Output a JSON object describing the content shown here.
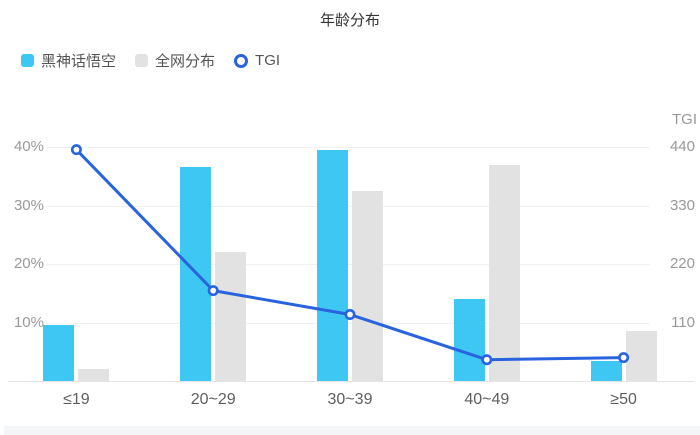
{
  "title": "年龄分布",
  "legend": {
    "items": [
      {
        "label": "黑神话悟空",
        "swatch": "square-primary"
      },
      {
        "label": "全网分布",
        "swatch": "square-secondary"
      },
      {
        "label": "TGI",
        "swatch": "ring"
      }
    ]
  },
  "colors": {
    "bar_primary": "#3dc7f2",
    "bar_secondary": "#e2e2e2",
    "line": "#2a63de",
    "grid": "#f0f0f0",
    "axis": "#e4e4e4",
    "tick_text": "#999999",
    "category_text": "#5e5e5e",
    "title_text": "#333333",
    "footer_strip": "#f4f5f6"
  },
  "chart_data": {
    "type": "bar",
    "title": "年龄分布",
    "categories": [
      "≤19",
      "20~29",
      "30~39",
      "40~49",
      "≥50"
    ],
    "series": [
      {
        "name": "黑神话悟空",
        "type": "bar",
        "axis": "left",
        "unit": "%",
        "values": [
          9.5,
          36.5,
          39.5,
          14,
          3.5
        ]
      },
      {
        "name": "全网分布",
        "type": "bar",
        "axis": "left",
        "unit": "%",
        "values": [
          2,
          22,
          32.5,
          37,
          8.5
        ]
      },
      {
        "name": "TGI",
        "type": "line",
        "axis": "right",
        "values": [
          435,
          170,
          125,
          40,
          44
        ]
      }
    ],
    "left_axis": {
      "ticks": [
        "10%",
        "20%",
        "30%",
        "40%"
      ],
      "min": 0,
      "max": 40
    },
    "right_axis": {
      "title": "TGI",
      "ticks": [
        "110",
        "220",
        "330",
        "440"
      ],
      "min": 0,
      "max": 440
    },
    "grid": true,
    "legend_position": "top-left"
  }
}
